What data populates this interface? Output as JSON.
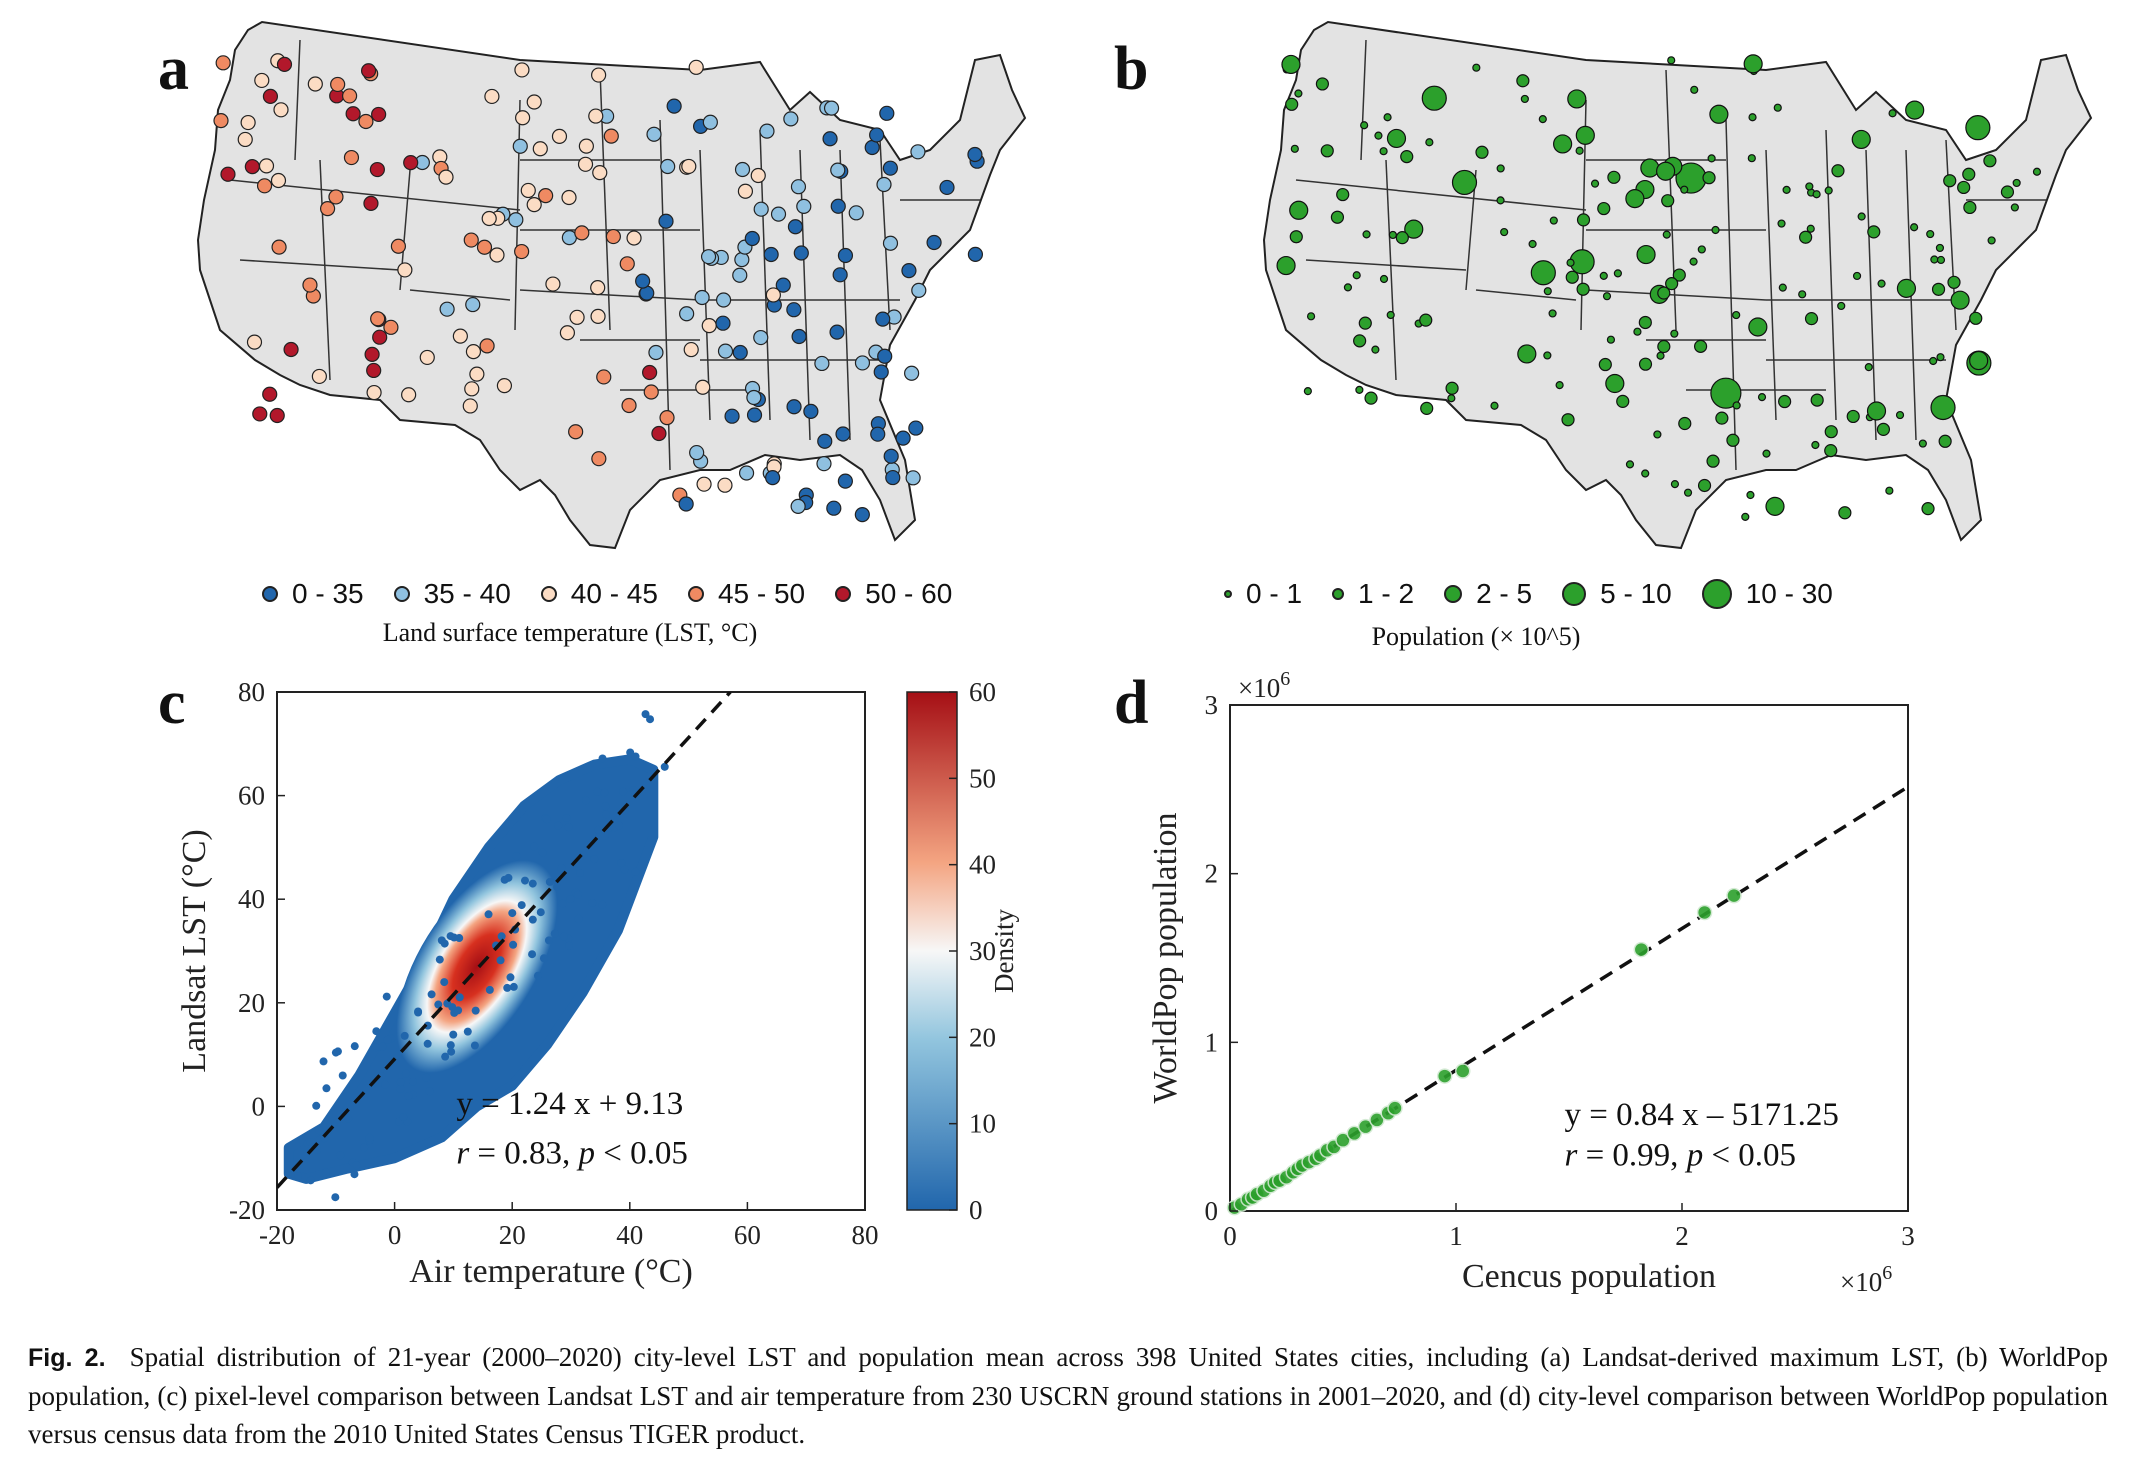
{
  "panels": {
    "a": {
      "label": "a",
      "legend_title": "Land surface temperature (LST, °C)"
    },
    "b": {
      "label": "b",
      "legend_title": "Population (× 10^5)"
    },
    "c": {
      "label": "c"
    },
    "d": {
      "label": "d"
    }
  },
  "caption": {
    "bold": "Fig. 2.",
    "text": "Spatial distribution of 21-year (2000–2020) city-level LST and population mean across 398 United States cities, including (a) Landsat-derived maximum LST, (b) WorldPop population, (c) pixel-level comparison between Landsat LST and air temperature from 230 USCRN ground stations in 2001–2020, and (d) city-level comparison between WorldPop population versus census data from the 2010 United States Census TIGER product."
  },
  "chart_data": [
    {
      "type": "map",
      "panel": "a",
      "legend_title": "Land surface temperature (LST, °C)",
      "classes": [
        {
          "label": "0  -  35",
          "color": "#2166ac"
        },
        {
          "label": "35 - 40",
          "color": "#8fc0e0"
        },
        {
          "label": "40 - 45",
          "color": "#fbdcc4"
        },
        {
          "label": "45 - 50",
          "color": "#ef8a62"
        },
        {
          "label": "50 - 60",
          "color": "#b2182b"
        }
      ]
    },
    {
      "type": "map",
      "panel": "b",
      "legend_title": "Population (× 10^5)",
      "color": "#2ca02c",
      "classes": [
        {
          "label": "0 - 1",
          "size": 1
        },
        {
          "label": "1 - 2",
          "size": 2
        },
        {
          "label": "2 - 5",
          "size": 3
        },
        {
          "label": "5 - 10",
          "size": 4
        },
        {
          "label": "10 - 30",
          "size": 5
        }
      ]
    },
    {
      "type": "scatter",
      "panel": "c",
      "xlabel": "Air temperature (°C)",
      "ylabel": "Landsat LST (°C)",
      "xlim": [
        -20,
        80
      ],
      "ylim": [
        -20,
        80
      ],
      "xticks": [
        "-20",
        "0",
        "20",
        "40",
        "60",
        "80"
      ],
      "yticks": [
        "-20",
        "0",
        "20",
        "40",
        "60",
        "80"
      ],
      "colorbar": {
        "label": "Density",
        "range": [
          0,
          60
        ],
        "ticks": [
          "0",
          "10",
          "20",
          "30",
          "40",
          "50",
          "60"
        ]
      },
      "fit": {
        "slope": 1.24,
        "intercept": 9.13
      },
      "equation": "y = 1.24 x + 9.13",
      "stats": {
        "r_sym": "r",
        "r_text": " = 0.83, ",
        "p_sym": "p",
        "p_text": " < 0.05"
      },
      "density_center": [
        14,
        27
      ],
      "envelope": [
        [
          -18,
          -13
        ],
        [
          -15,
          -14
        ],
        [
          -8,
          -12
        ],
        [
          0,
          -10
        ],
        [
          8,
          -6
        ],
        [
          14,
          0
        ],
        [
          20,
          4
        ],
        [
          26,
          12
        ],
        [
          32,
          22
        ],
        [
          38,
          34
        ],
        [
          44,
          52
        ],
        [
          44,
          65
        ],
        [
          40,
          67
        ],
        [
          34,
          66
        ],
        [
          28,
          63
        ],
        [
          22,
          58
        ],
        [
          16,
          50
        ],
        [
          10,
          40
        ],
        [
          5,
          28
        ],
        [
          0,
          18
        ],
        [
          -6,
          6
        ],
        [
          -12,
          -4
        ],
        [
          -18,
          -8
        ]
      ]
    },
    {
      "type": "scatter",
      "panel": "d",
      "xlabel": "Cencus population",
      "ylabel": "WorldPop population",
      "xlim": [
        0,
        3
      ],
      "ylim": [
        0,
        3
      ],
      "xticks": [
        "0",
        "1",
        "2",
        "3"
      ],
      "yticks": [
        "0",
        "1",
        "2",
        "3"
      ],
      "scale_x": "×10",
      "scale_y": "×10",
      "scale_exp": "6",
      "fit": {
        "slope": 0.84,
        "intercept_e6": -0.00517125
      },
      "equation": "y = 0.84 x – 5171.25",
      "stats": {
        "r_sym": "r",
        "r_text": " = 0.99, ",
        "p_sym": "p",
        "p_text": " < 0.05"
      },
      "points_e6": [
        [
          0.02,
          0.02
        ],
        [
          0.05,
          0.04
        ],
        [
          0.08,
          0.07
        ],
        [
          0.1,
          0.08
        ],
        [
          0.12,
          0.1
        ],
        [
          0.15,
          0.12
        ],
        [
          0.18,
          0.15
        ],
        [
          0.2,
          0.17
        ],
        [
          0.22,
          0.18
        ],
        [
          0.25,
          0.2
        ],
        [
          0.28,
          0.23
        ],
        [
          0.3,
          0.25
        ],
        [
          0.32,
          0.27
        ],
        [
          0.35,
          0.29
        ],
        [
          0.38,
          0.31
        ],
        [
          0.4,
          0.33
        ],
        [
          0.43,
          0.36
        ],
        [
          0.46,
          0.38
        ],
        [
          0.5,
          0.42
        ],
        [
          0.55,
          0.46
        ],
        [
          0.6,
          0.5
        ],
        [
          0.65,
          0.54
        ],
        [
          0.7,
          0.58
        ],
        [
          0.73,
          0.61
        ],
        [
          0.95,
          0.8
        ],
        [
          1.03,
          0.83
        ],
        [
          1.82,
          1.55
        ],
        [
          2.1,
          1.77
        ],
        [
          2.23,
          1.87
        ]
      ]
    }
  ]
}
